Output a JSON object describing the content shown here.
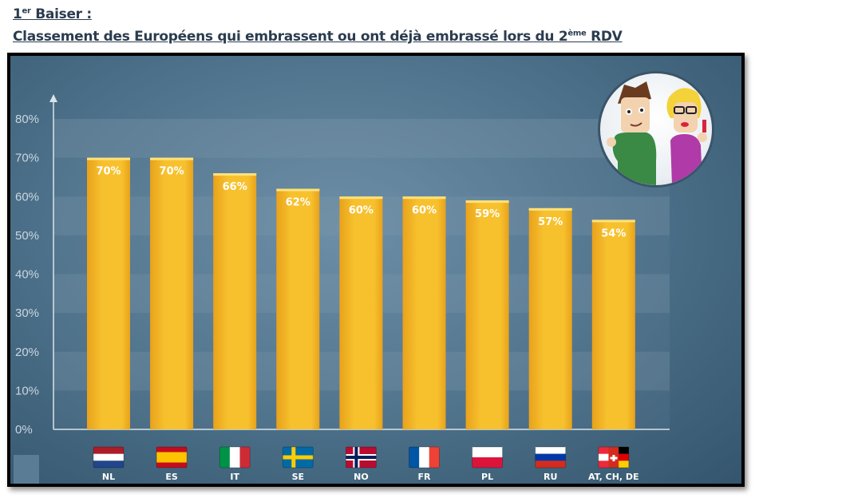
{
  "header": {
    "line1_prefix": "1",
    "line1_sup": "er",
    "line1_suffix": " Baiser :",
    "line2_prefix": "Classement des Européens qui embrassent ou ont déjà embrassé lors du 2",
    "line2_sup": "ème",
    "line2_suffix": " RDV"
  },
  "colors": {
    "bar": "#f7c12e",
    "bar_dark": "#e9a21b",
    "panel": "#4b6f88",
    "band": "#7d98ad"
  },
  "chart_data": {
    "type": "bar",
    "categories": [
      "NL",
      "ES",
      "IT",
      "SE",
      "NO",
      "FR",
      "PL",
      "RU",
      "AT, CH, DE"
    ],
    "values": [
      70,
      70,
      66,
      62,
      60,
      60,
      59,
      57,
      54
    ],
    "data_labels": [
      "70%",
      "70%",
      "66%",
      "62%",
      "60%",
      "60%",
      "59%",
      "57%",
      "54%"
    ],
    "yticks": [
      "0%",
      "10%",
      "20%",
      "30%",
      "40%",
      "50%",
      "60%",
      "70%",
      "80%"
    ],
    "ylim": [
      0,
      80
    ],
    "legend": "none",
    "flags": [
      "Netherlands",
      "Spain",
      "Italy",
      "Sweden",
      "Norway",
      "France",
      "Poland",
      "Russia",
      "Austria-Switzerland-Germany"
    ]
  }
}
